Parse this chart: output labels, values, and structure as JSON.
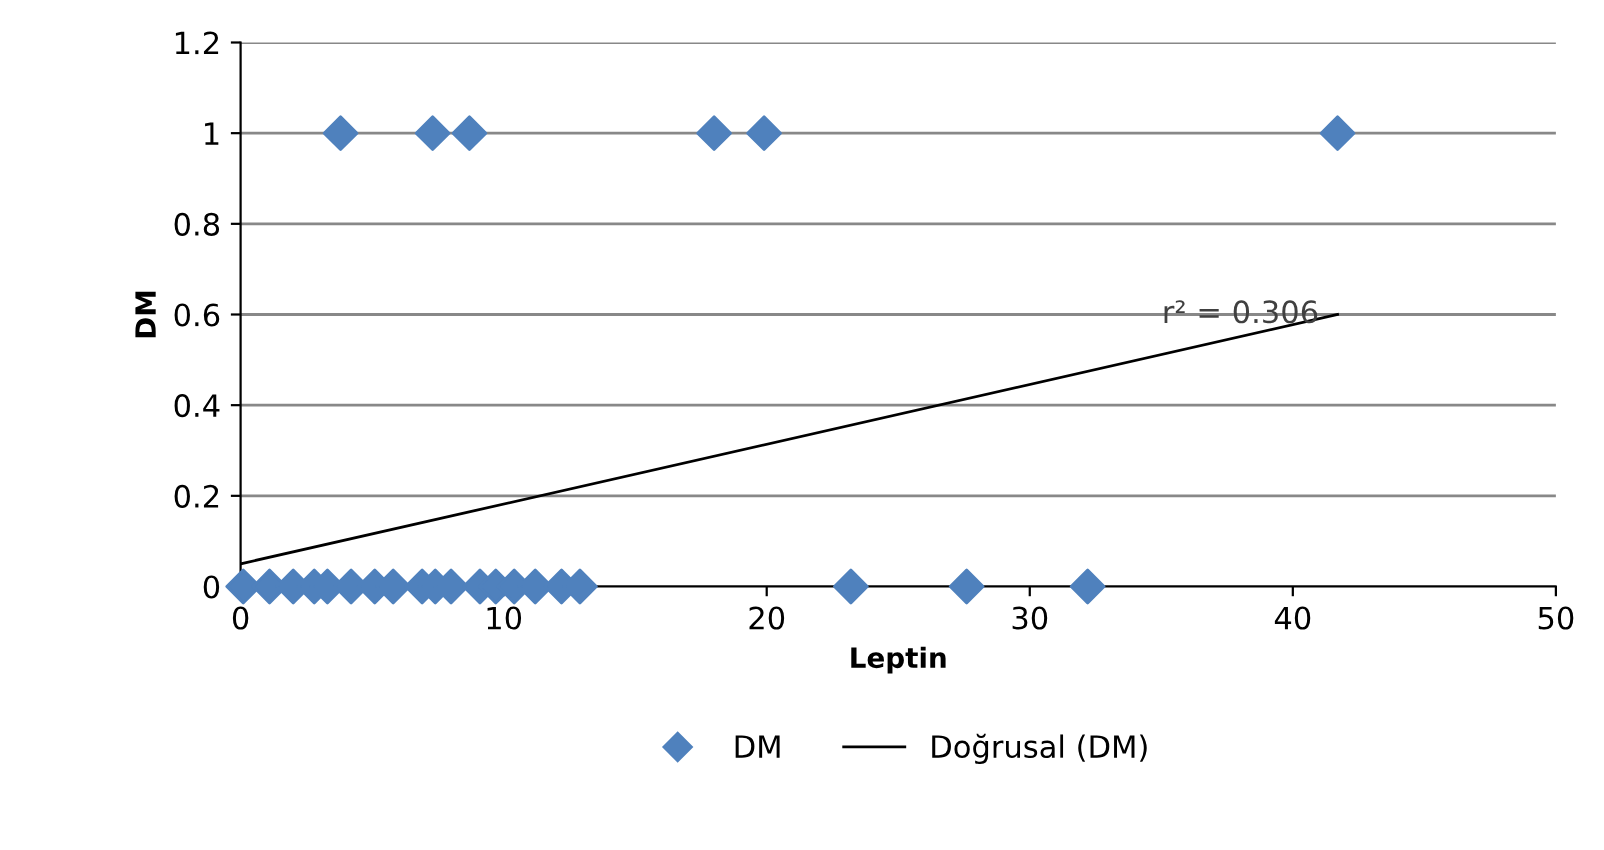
{
  "chart_data": {
    "type": "scatter",
    "xlabel": "Leptin",
    "ylabel": "DM",
    "xlim": [
      0,
      50
    ],
    "xticks": [
      0,
      10,
      20,
      30,
      40,
      50
    ],
    "ylim": [
      0,
      1.2
    ],
    "yticks": [
      0,
      0.2,
      0.4,
      0.6,
      0.8,
      1,
      1.2
    ],
    "grid": "y",
    "legend": "bottom",
    "series": [
      {
        "name": "DM",
        "marker": "diamond",
        "color": "#4f81bd",
        "x": [
          0.1,
          1.1,
          2.0,
          2.8,
          3.3,
          4.2,
          5.1,
          5.8,
          6.9,
          7.4,
          8.0,
          9.1,
          9.7,
          10.4,
          11.2,
          12.2,
          12.9,
          23.2,
          27.6,
          32.2,
          3.8,
          7.3,
          8.7,
          18.0,
          19.9,
          41.7
        ],
        "values": [
          0,
          0,
          0,
          0,
          0,
          0,
          0,
          0,
          0,
          0,
          0,
          0,
          0,
          0,
          0,
          0,
          0,
          0,
          0,
          0,
          1,
          1,
          1,
          1,
          1,
          1
        ]
      },
      {
        "name": "Doğrusal (DM)",
        "type": "line",
        "color": "#000000",
        "x": [
          0,
          41.7
        ],
        "values": [
          0.05,
          0.6
        ]
      }
    ],
    "annotations": [
      {
        "text": "r² = 0.306",
        "x": 41,
        "y": 0.6
      }
    ]
  }
}
